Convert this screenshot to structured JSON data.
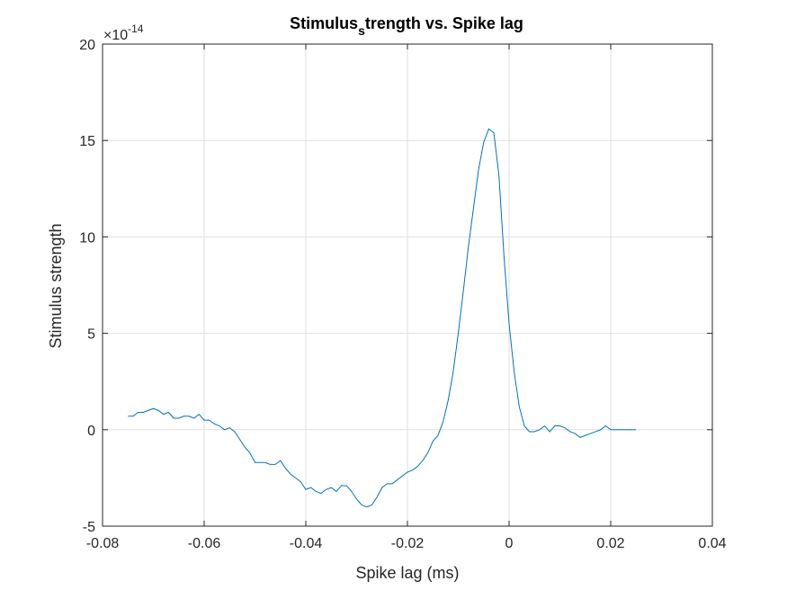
{
  "chart_data": {
    "type": "line",
    "title": {
      "main": "Stimulus",
      "subscript": "s",
      "rest": "trength vs. Spike lag"
    },
    "xlabel": "Spike lag (ms)",
    "ylabel": "Stimulus strength",
    "xlim": [
      -0.08,
      0.04
    ],
    "ylim": [
      -5,
      20
    ],
    "y_exponent_label": {
      "base": "×10",
      "power": "-14"
    },
    "xticks": [
      -0.08,
      -0.06,
      -0.04,
      -0.02,
      0,
      0.02,
      0.04
    ],
    "xtick_labels": [
      "-0.08",
      "-0.06",
      "-0.04",
      "-0.02",
      "0",
      "0.02",
      "0.04"
    ],
    "yticks": [
      -5,
      0,
      5,
      10,
      15,
      20
    ],
    "ytick_labels": [
      "-5",
      "0",
      "5",
      "10",
      "15",
      "20"
    ],
    "grid": true,
    "line_color": "#0072BD",
    "series": [
      {
        "x": [
          -0.075,
          -0.074,
          -0.073,
          -0.072,
          -0.071,
          -0.07,
          -0.069,
          -0.068,
          -0.067,
          -0.066,
          -0.065,
          -0.064,
          -0.063,
          -0.062,
          -0.061,
          -0.06,
          -0.059,
          -0.058,
          -0.057,
          -0.056,
          -0.055,
          -0.054,
          -0.053,
          -0.052,
          -0.051,
          -0.05,
          -0.049,
          -0.048,
          -0.047,
          -0.046,
          -0.045,
          -0.044,
          -0.043,
          -0.042,
          -0.041,
          -0.04,
          -0.039,
          -0.038,
          -0.037,
          -0.036,
          -0.035,
          -0.034,
          -0.033,
          -0.032,
          -0.031,
          -0.03,
          -0.029,
          -0.028,
          -0.027,
          -0.026,
          -0.025,
          -0.024,
          -0.023,
          -0.022,
          -0.021,
          -0.02,
          -0.019,
          -0.018,
          -0.017,
          -0.016,
          -0.015,
          -0.014,
          -0.013,
          -0.012,
          -0.011,
          -0.01,
          -0.009,
          -0.008,
          -0.007,
          -0.006,
          -0.005,
          -0.004,
          -0.003,
          -0.002,
          -0.001,
          0.0,
          0.001,
          0.002,
          0.003,
          0.004,
          0.005,
          0.006,
          0.007,
          0.008,
          0.009,
          0.01,
          0.011,
          0.012,
          0.013,
          0.014,
          0.015,
          0.016,
          0.017,
          0.018,
          0.019,
          0.02,
          0.021,
          0.022,
          0.023,
          0.024,
          0.025
        ],
        "y": [
          0.7,
          0.7,
          0.9,
          0.9,
          1.0,
          1.1,
          1.0,
          0.8,
          0.9,
          0.6,
          0.6,
          0.7,
          0.7,
          0.6,
          0.8,
          0.5,
          0.5,
          0.3,
          0.2,
          0.0,
          0.1,
          -0.1,
          -0.5,
          -0.9,
          -1.2,
          -1.7,
          -1.7,
          -1.7,
          -1.8,
          -1.8,
          -1.6,
          -2.0,
          -2.3,
          -2.5,
          -2.7,
          -3.1,
          -3.0,
          -3.2,
          -3.3,
          -3.1,
          -3.0,
          -3.2,
          -2.9,
          -2.9,
          -3.2,
          -3.6,
          -3.9,
          -4.0,
          -3.9,
          -3.5,
          -3.0,
          -2.8,
          -2.8,
          -2.6,
          -2.4,
          -2.2,
          -2.1,
          -1.9,
          -1.6,
          -1.2,
          -0.6,
          -0.3,
          0.4,
          1.5,
          3.0,
          5.0,
          7.2,
          9.5,
          11.5,
          13.5,
          14.9,
          15.6,
          15.4,
          13.2,
          9.0,
          5.5,
          3.0,
          1.2,
          0.2,
          -0.1,
          -0.1,
          0.0,
          0.2,
          -0.1,
          0.2,
          0.2,
          0.1,
          -0.1,
          -0.2,
          -0.4,
          -0.3,
          -0.2,
          -0.1,
          0.0,
          0.2,
          0.0,
          0.0,
          0.0,
          0.0,
          0.0,
          0.0
        ]
      }
    ]
  }
}
